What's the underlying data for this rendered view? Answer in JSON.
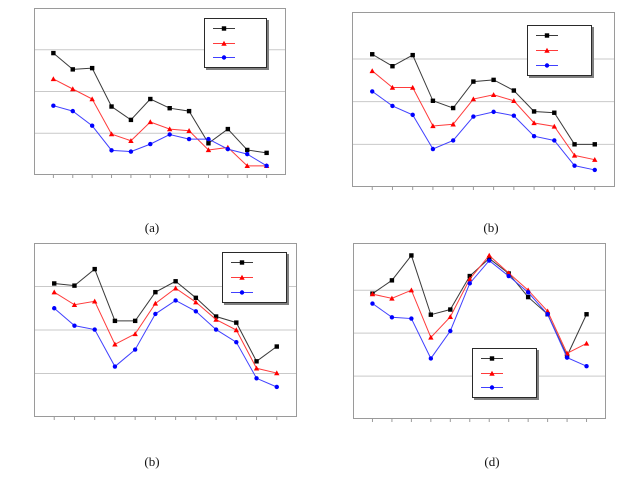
{
  "figure": {
    "background": "#ffffff",
    "grid_color": "#c9c9c9",
    "plot_border_color": "#9a9a9a",
    "tick_color": "#9a9a9a",
    "legend_shadow_color": "#7f7f7f",
    "axis_labels_visible": false,
    "legend_text_visible": false
  },
  "chart_data": [
    {
      "id": "chart-a",
      "type": "line",
      "caption": "(a)",
      "title": "",
      "xlabel": "",
      "ylabel": "",
      "ylim": [
        0,
        4.0
      ],
      "gridlines_y": [
        1,
        2,
        3
      ],
      "legend_position": "top-right",
      "series": [
        {
          "name": "series-black",
          "color": "#000000",
          "line_color": "#3a3a3a",
          "marker": "square",
          "values": [
            2.92,
            2.53,
            2.56,
            1.64,
            1.32,
            1.82,
            1.6,
            1.53,
            0.76,
            1.1,
            0.6,
            0.53
          ]
        },
        {
          "name": "series-red",
          "color": "#ff0000",
          "line_color": "#ff3b3b",
          "marker": "triangle",
          "values": [
            2.3,
            2.06,
            1.82,
            0.98,
            0.82,
            1.27,
            1.1,
            1.06,
            0.6,
            0.66,
            0.22,
            0.22
          ]
        },
        {
          "name": "series-blue",
          "color": "#0000ff",
          "line_color": "#4040ff",
          "marker": "circle",
          "values": [
            1.66,
            1.53,
            1.18,
            0.59,
            0.56,
            0.74,
            0.97,
            0.86,
            0.86,
            0.62,
            0.5,
            0.22
          ]
        }
      ]
    },
    {
      "id": "chart-b-top",
      "type": "line",
      "caption": "(b)",
      "title": "",
      "xlabel": "",
      "ylabel": "",
      "ylim": [
        0,
        4.1
      ],
      "gridlines_y": [
        1,
        2,
        3
      ],
      "legend_position": "top-right",
      "series": [
        {
          "name": "series-black",
          "color": "#000000",
          "line_color": "#3a3a3a",
          "marker": "square",
          "values": [
            3.11,
            2.83,
            3.09,
            2.02,
            1.85,
            2.47,
            2.51,
            2.26,
            1.77,
            1.74,
            1.0,
            1.0
          ]
        },
        {
          "name": "series-red",
          "color": "#ff0000",
          "line_color": "#ff3b3b",
          "marker": "triangle",
          "values": [
            2.72,
            2.33,
            2.33,
            1.43,
            1.47,
            2.06,
            2.16,
            2.02,
            1.5,
            1.42,
            0.74,
            0.64
          ]
        },
        {
          "name": "series-blue",
          "color": "#0000ff",
          "line_color": "#4040ff",
          "marker": "circle",
          "values": [
            2.24,
            1.9,
            1.69,
            0.89,
            1.09,
            1.65,
            1.76,
            1.67,
            1.19,
            1.09,
            0.5,
            0.4
          ]
        }
      ]
    },
    {
      "id": "chart-b-bottom",
      "type": "line",
      "caption": "(b)",
      "title": "",
      "xlabel": "",
      "ylabel": "",
      "ylim": [
        0,
        4.0
      ],
      "gridlines_y": [
        1,
        2,
        3
      ],
      "legend_position": "top-right",
      "series": [
        {
          "name": "series-black",
          "color": "#000000",
          "line_color": "#3a3a3a",
          "marker": "square",
          "values": [
            3.07,
            3.02,
            3.4,
            2.21,
            2.21,
            2.87,
            3.12,
            2.74,
            2.31,
            2.17,
            1.28,
            1.62
          ]
        },
        {
          "name": "series-red",
          "color": "#ff0000",
          "line_color": "#ff3b3b",
          "marker": "triangle",
          "values": [
            2.87,
            2.58,
            2.66,
            1.67,
            1.91,
            2.61,
            2.96,
            2.64,
            2.24,
            2.0,
            1.12,
            1.01
          ]
        },
        {
          "name": "series-blue",
          "color": "#0000ff",
          "line_color": "#4040ff",
          "marker": "circle",
          "values": [
            2.5,
            2.1,
            2.01,
            1.16,
            1.55,
            2.37,
            2.68,
            2.43,
            2.01,
            1.72,
            0.89,
            0.69
          ]
        }
      ]
    },
    {
      "id": "chart-d",
      "type": "line",
      "caption": "(d)",
      "title": "",
      "xlabel": "",
      "ylabel": "",
      "ylim": [
        0,
        4.1
      ],
      "gridlines_y": [
        1,
        2,
        3
      ],
      "legend_position": "bottom-center",
      "series": [
        {
          "name": "series-black",
          "color": "#000000",
          "line_color": "#3a3a3a",
          "marker": "square",
          "values": [
            2.92,
            3.23,
            3.81,
            2.43,
            2.55,
            3.33,
            3.74,
            3.39,
            2.84,
            2.44,
            1.47,
            2.44
          ]
        },
        {
          "name": "series-red",
          "color": "#ff0000",
          "line_color": "#ff3b3b",
          "marker": "triangle",
          "values": [
            2.91,
            2.81,
            3.0,
            1.9,
            2.38,
            3.26,
            3.81,
            3.4,
            3.0,
            2.51,
            1.53,
            1.76
          ]
        },
        {
          "name": "series-blue",
          "color": "#0000ff",
          "line_color": "#4040ff",
          "marker": "circle",
          "values": [
            2.69,
            2.37,
            2.34,
            1.41,
            2.05,
            3.16,
            3.69,
            3.33,
            2.95,
            2.44,
            1.43,
            1.23
          ]
        }
      ]
    }
  ]
}
